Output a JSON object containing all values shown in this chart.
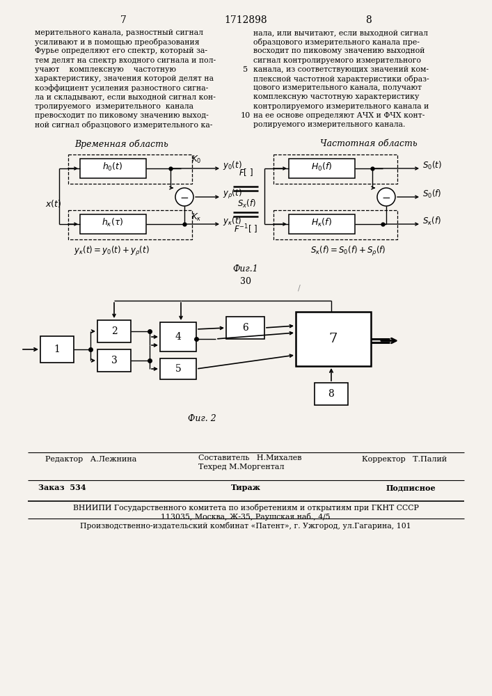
{
  "bg_color": "#f5f2ed",
  "page_num_left": "7",
  "page_num_center": "1712898",
  "page_num_right": "8",
  "left_text_lines": [
    "мерительного канала, разностный сигнал",
    "усиливают и в помощью преобразования",
    "Фурье определяют его спектр, который за-",
    "тем делят на спектр входного сигнала и пол-",
    "учают    комплексную    частотную",
    "характеристику, значения которой делят на",
    "коэффициент усиления разностного сигна-",
    "ла и складывают, если выходной сигнал кон-",
    "тролируемого  измерительного  канала",
    "превосходит по пиковому значению выход-",
    "ной сигнал образцового измерительного ка-"
  ],
  "right_text_lines": [
    "нала, или вычитают, если выходной сигнал",
    "образцового измерительного канала пре-",
    "восходит по пиковому значению выходной",
    "сигнал контролируемого измерительного",
    "канала, из соответствующих значений ком-",
    "плексной частотной характеристики образ-",
    "цового измерительного канала, получают",
    "комплексную частотную характеристику",
    "контролируемого измерительного канала и",
    "на ее основе определяют АЧХ и ФЧХ конт-",
    "ролируемого измерительного канала."
  ],
  "line5_text": "5",
  "line10_text": "10",
  "fig1_label": "Фиг.1",
  "page30_label": "30",
  "fig2_label": "Фиг. 2",
  "footer_editor": "Редактор   А.Лежнина",
  "footer_composer": "Составитель   Н.Михалев",
  "footer_tech": "Техред М.Моргентал",
  "footer_corrector": "Корректор   Т.Палий",
  "footer_order": "Заказ  534",
  "footer_copies": "Тираж",
  "footer_subscr": "Подписное",
  "footer_vniip": "ВНИИПИ Государственного комитета по изобретениям и открытиям при ГКНТ СССР",
  "footer_addr": "113035, Москва, Ж-35, Раушская наб., 4/5",
  "footer_patent": "Производственно-издательский комбинат «Патент», г. Ужгород, ул.Гагарина, 101"
}
